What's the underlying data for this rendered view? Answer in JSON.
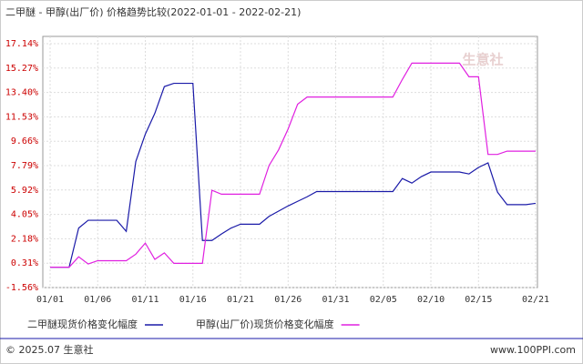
{
  "chart_data": {
    "type": "line",
    "title": "二甲醚 - 甲醇(出厂价) 价格趋势比较(2022-01-01 - 2022-02-21)",
    "watermark": "生意社",
    "footer_left": "© 2025.07 生意社",
    "footer_right": "www.100PPI.com",
    "categories": [
      "01/01",
      null,
      null,
      null,
      null,
      "01/06",
      null,
      null,
      null,
      null,
      "01/11",
      null,
      null,
      null,
      null,
      "01/16",
      null,
      null,
      null,
      null,
      "01/21",
      null,
      null,
      null,
      null,
      "01/26",
      null,
      null,
      null,
      null,
      "01/31",
      null,
      null,
      null,
      null,
      "02/05",
      null,
      null,
      null,
      null,
      "02/10",
      null,
      null,
      null,
      null,
      "02/15",
      null,
      null,
      null,
      null,
      null,
      "02/21"
    ],
    "series": [
      {
        "name": "二甲醚现货价格变化幅度",
        "color": "#1a1aa8",
        "values": [
          0,
          0,
          0,
          3.0,
          3.6,
          3.6,
          3.6,
          3.6,
          2.75,
          8.1,
          10.2,
          11.8,
          13.85,
          14.1,
          14.1,
          14.1,
          2.05,
          2.05,
          2.55,
          3.0,
          3.3,
          3.3,
          3.3,
          3.9,
          4.3,
          4.7,
          5.05,
          5.4,
          5.8,
          5.8,
          5.8,
          5.8,
          5.8,
          5.8,
          5.8,
          5.8,
          5.8,
          6.8,
          6.45,
          6.95,
          7.3,
          7.3,
          7.3,
          7.3,
          7.15,
          7.65,
          8.0,
          5.75,
          4.8,
          4.8,
          4.8,
          4.9
        ]
      },
      {
        "name": "甲醇(出厂价)现货价格变化幅度",
        "color": "#e020e0",
        "values": [
          0,
          0,
          0,
          0.8,
          0.25,
          0.5,
          0.5,
          0.5,
          0.5,
          1.0,
          1.85,
          0.6,
          1.1,
          0.3,
          0.3,
          0.3,
          0.3,
          5.9,
          5.6,
          5.6,
          5.6,
          5.6,
          5.6,
          7.8,
          9.0,
          10.6,
          12.5,
          13.05,
          13.05,
          13.05,
          13.05,
          13.05,
          13.05,
          13.05,
          13.05,
          13.05,
          13.05,
          14.4,
          15.65,
          15.65,
          15.65,
          15.65,
          15.65,
          15.65,
          14.6,
          14.6,
          8.65,
          8.65,
          8.9,
          8.9,
          8.9,
          8.9
        ]
      }
    ],
    "ylim": [
      -1.56,
      17.14
    ],
    "yticks": [
      {
        "value": 17.14,
        "label": "17.14%"
      },
      {
        "value": 15.27,
        "label": "15.27%"
      },
      {
        "value": 13.4,
        "label": "13.40%"
      },
      {
        "value": 11.53,
        "label": "11.53%"
      },
      {
        "value": 9.66,
        "label": "9.66%"
      },
      {
        "value": 7.79,
        "label": "7.79%"
      },
      {
        "value": 5.92,
        "label": "5.92%"
      },
      {
        "value": 4.05,
        "label": "4.05%"
      },
      {
        "value": 2.18,
        "label": "2.18%"
      },
      {
        "value": 0.31,
        "label": "0.31%"
      },
      {
        "value": -1.56,
        "label": "-1.56%"
      }
    ],
    "grid": true
  }
}
